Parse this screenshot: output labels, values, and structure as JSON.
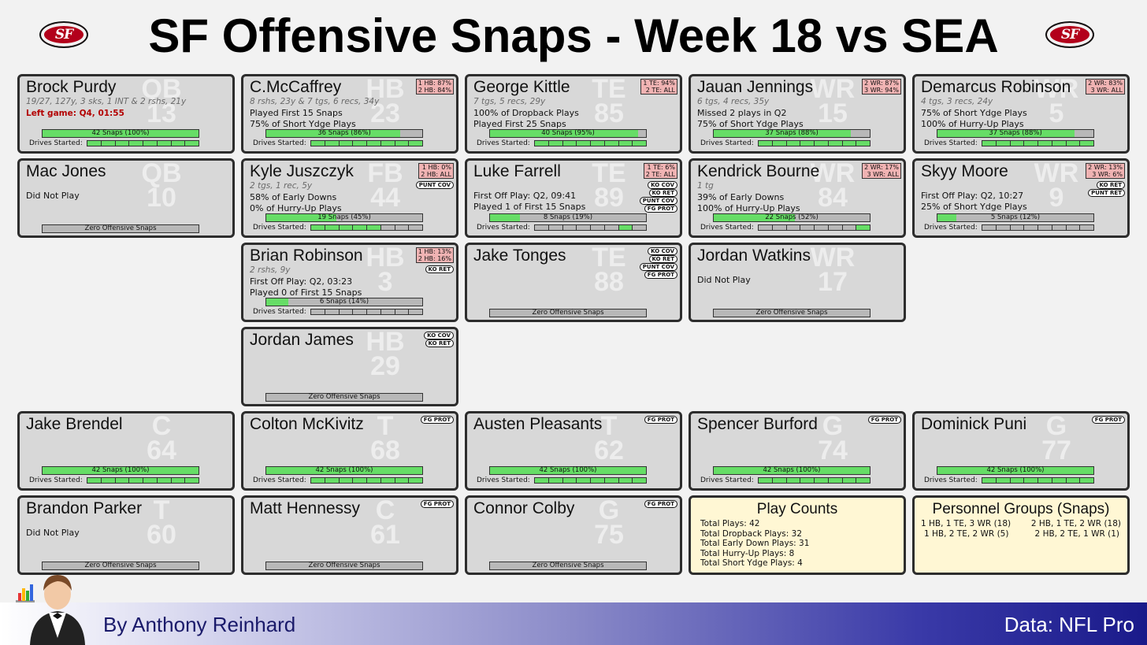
{
  "title": "SF Offensive Snaps - Week 18 vs SEA",
  "logo_text": "SF",
  "footer": {
    "author": "By Anthony Reinhard",
    "source": "Data: NFL Pro"
  },
  "drives_label": "Drives Started:",
  "colors": {
    "bar_fill": "#66dd66",
    "bar_empty": "#b8b8b8",
    "card_bg": "#d8d8d8",
    "summary_bg": "#fff7d4",
    "pct_badge": "#f0b3b3",
    "left_game": "#b30000"
  },
  "players": [
    {
      "name": "Brock Purdy",
      "pos": "QB",
      "num": "13",
      "sub": "19/27, 127y, 3 sks, 1 INT & 2 rshs, 21y",
      "lines": [
        "Left game: Q4, 01:55"
      ],
      "left_game": true,
      "snaps": "42 Snaps (100%)",
      "snap_pct": 100,
      "drives": [
        1,
        1,
        1,
        1,
        1,
        1,
        1,
        1
      ],
      "badges": [],
      "pcts": []
    },
    {
      "name": "C.McCaffrey",
      "pos": "HB",
      "num": "23",
      "sub": "8 rshs, 23y & 7 tgs, 6 recs, 34y",
      "lines": [
        "Played First 15 Snaps",
        "75% of Short Ydge Plays"
      ],
      "snaps": "36 Snaps (86%)",
      "snap_pct": 86,
      "drives": [
        1,
        1,
        1,
        1,
        1,
        1,
        1,
        1
      ],
      "badges": [],
      "pcts": [
        "1 HB: 87%",
        "2 HB: 84%"
      ]
    },
    {
      "name": "George Kittle",
      "pos": "TE",
      "num": "85",
      "sub": "7 tgs, 5 recs, 29y",
      "lines": [
        "100% of Dropback Plays",
        "Played First 25 Snaps"
      ],
      "snaps": "40 Snaps (95%)",
      "snap_pct": 95,
      "drives": [
        1,
        1,
        1,
        1,
        1,
        1,
        1,
        1
      ],
      "badges": [],
      "pcts": [
        "1 TE: 94%",
        "2 TE: ALL"
      ]
    },
    {
      "name": "Jauan Jennings",
      "pos": "WR",
      "num": "15",
      "sub": "6 tgs, 4 recs, 35y",
      "lines": [
        "Missed 2 plays in Q2",
        "75% of Short Ydge Plays"
      ],
      "snaps": "37 Snaps (88%)",
      "snap_pct": 88,
      "drives": [
        1,
        1,
        1,
        1,
        1,
        1,
        1,
        1
      ],
      "badges": [],
      "pcts": [
        "2 WR: 87%",
        "3 WR: 94%"
      ]
    },
    {
      "name": "Demarcus Robinson",
      "pos": "WR",
      "num": "5",
      "sub": "4 tgs, 3 recs, 24y",
      "lines": [
        "75% of Short Ydge Plays",
        "100% of Hurry-Up Plays"
      ],
      "snaps": "37 Snaps (88%)",
      "snap_pct": 88,
      "drives": [
        1,
        1,
        1,
        1,
        1,
        1,
        1,
        1
      ],
      "badges": [],
      "pcts": [
        "2 WR: 83%",
        "3 WR: ALL"
      ]
    },
    {
      "name": "Mac Jones",
      "pos": "QB",
      "num": "10",
      "sub": "",
      "lines": [
        "Did Not Play"
      ],
      "snaps": "Zero Offensive Snaps",
      "snap_pct": 0,
      "drives": null,
      "badges": [],
      "pcts": []
    },
    {
      "name": "Kyle Juszczyk",
      "pos": "FB",
      "num": "44",
      "sub": "2 tgs, 1 rec, 5y",
      "lines": [
        "58% of Early Downs",
        "0% of Hurry-Up Plays"
      ],
      "snaps": "19 Snaps (45%)",
      "snap_pct": 45,
      "drives": [
        1,
        1,
        1,
        1,
        1,
        0,
        0,
        0
      ],
      "badges": [
        "PUNT COV"
      ],
      "pcts": [
        "1 HB:  0%",
        "2 HB: ALL"
      ]
    },
    {
      "name": "Luke Farrell",
      "pos": "TE",
      "num": "89",
      "sub": "",
      "lines": [
        "First Off Play: Q2, 09:41",
        "Played 1 of First 15 Snaps"
      ],
      "snaps": "8 Snaps (19%)",
      "snap_pct": 19,
      "drives": [
        0,
        0,
        0,
        0,
        0,
        0,
        1,
        0
      ],
      "badges": [
        "KO COV",
        "KO RET",
        "PUNT COV",
        "FG PROT"
      ],
      "pcts": [
        "1 TE:  6%",
        "2 TE: ALL"
      ]
    },
    {
      "name": "Kendrick Bourne",
      "pos": "WR",
      "num": "84",
      "sub": "1 tg",
      "lines": [
        "39% of Early Downs",
        "100% of Hurry-Up Plays"
      ],
      "snaps": "22 Snaps (52%)",
      "snap_pct": 52,
      "drives": [
        0,
        0,
        0,
        0,
        0,
        0,
        0,
        1
      ],
      "badges": [],
      "pcts": [
        "2 WR: 17%",
        "3 WR: ALL"
      ]
    },
    {
      "name": "Skyy Moore",
      "pos": "WR",
      "num": "9",
      "sub": "",
      "lines": [
        "First Off Play: Q2, 10:27",
        "25% of Short Ydge Plays"
      ],
      "snaps": "5 Snaps (12%)",
      "snap_pct": 12,
      "drives": [
        0,
        0,
        0,
        0,
        0,
        0,
        0,
        0
      ],
      "badges": [
        "KO RET",
        "PUNT RET"
      ],
      "pcts": [
        "2 WR: 13%",
        "3 WR:  6%"
      ]
    },
    {
      "name": "Brian Robinson",
      "pos": "HB",
      "num": "3",
      "sub": "2 rshs, 9y",
      "lines": [
        "First Off Play: Q2, 03:23",
        "Played 0 of First 15 Snaps"
      ],
      "snaps": "6 Snaps (14%)",
      "snap_pct": 14,
      "drives": [
        0,
        0,
        0,
        0,
        0,
        0,
        0,
        0
      ],
      "badges": [
        "KO RET"
      ],
      "pcts": [
        "1 HB: 13%",
        "2 HB: 16%"
      ]
    },
    {
      "name": "Jake Tonges",
      "pos": "TE",
      "num": "88",
      "sub": "",
      "lines": [],
      "snaps": "Zero Offensive Snaps",
      "snap_pct": 0,
      "drives": null,
      "badges": [
        "KO COV",
        "KO RET",
        "PUNT COV",
        "FG PROT"
      ],
      "pcts": []
    },
    {
      "name": "Jordan Watkins",
      "pos": "WR",
      "num": "17",
      "sub": "",
      "lines": [
        "Did Not Play"
      ],
      "snaps": "Zero Offensive Snaps",
      "snap_pct": 0,
      "drives": null,
      "badges": [],
      "pcts": []
    },
    {
      "name": "Jordan James",
      "pos": "HB",
      "num": "29",
      "sub": "",
      "lines": [],
      "snaps": "Zero Offensive Snaps",
      "snap_pct": 0,
      "drives": null,
      "badges": [
        "KO COV",
        "KO RET"
      ],
      "pcts": []
    },
    {
      "name": "Jake Brendel",
      "pos": "C",
      "num": "64",
      "sub": "",
      "lines": [],
      "snaps": "42 Snaps (100%)",
      "snap_pct": 100,
      "drives": [
        1,
        1,
        1,
        1,
        1,
        1,
        1,
        1
      ],
      "badges": [],
      "pcts": []
    },
    {
      "name": "Colton McKivitz",
      "pos": "T",
      "num": "68",
      "sub": "",
      "lines": [],
      "snaps": "42 Snaps (100%)",
      "snap_pct": 100,
      "drives": [
        1,
        1,
        1,
        1,
        1,
        1,
        1,
        1
      ],
      "badges": [
        "FG PROT"
      ],
      "pcts": []
    },
    {
      "name": "Austen Pleasants",
      "pos": "T",
      "num": "62",
      "sub": "",
      "lines": [],
      "snaps": "42 Snaps (100%)",
      "snap_pct": 100,
      "drives": [
        1,
        1,
        1,
        1,
        1,
        1,
        1,
        1
      ],
      "badges": [
        "FG PROT"
      ],
      "pcts": []
    },
    {
      "name": "Spencer Burford",
      "pos": "G",
      "num": "74",
      "sub": "",
      "lines": [],
      "snaps": "42 Snaps (100%)",
      "snap_pct": 100,
      "drives": [
        1,
        1,
        1,
        1,
        1,
        1,
        1,
        1
      ],
      "badges": [
        "FG PROT"
      ],
      "pcts": []
    },
    {
      "name": "Dominick Puni",
      "pos": "G",
      "num": "77",
      "sub": "",
      "lines": [],
      "snaps": "42 Snaps (100%)",
      "snap_pct": 100,
      "drives": [
        1,
        1,
        1,
        1,
        1,
        1,
        1,
        1
      ],
      "badges": [
        "FG PROT"
      ],
      "pcts": []
    },
    {
      "name": "Brandon Parker",
      "pos": "T",
      "num": "60",
      "sub": "",
      "lines": [
        "Did Not Play"
      ],
      "snaps": "Zero Offensive Snaps",
      "snap_pct": 0,
      "drives": null,
      "badges": [],
      "pcts": []
    },
    {
      "name": "Matt Hennessy",
      "pos": "C",
      "num": "61",
      "sub": "",
      "lines": [],
      "snaps": "Zero Offensive Snaps",
      "snap_pct": 0,
      "drives": null,
      "badges": [
        "FG PROT"
      ],
      "pcts": []
    },
    {
      "name": "Connor Colby",
      "pos": "G",
      "num": "75",
      "sub": "",
      "lines": [],
      "snaps": "Zero Offensive Snaps",
      "snap_pct": 0,
      "drives": null,
      "badges": [
        "FG PROT"
      ],
      "pcts": []
    }
  ],
  "play_counts": {
    "title": "Play Counts",
    "items": [
      "Total Plays: 42",
      "Total Dropback Plays: 32",
      "Total Early Down Plays: 31",
      "Total Hurry-Up Plays: 8",
      "Total Short Ydge Plays: 4"
    ]
  },
  "personnel": {
    "title": "Personnel Groups (Snaps)",
    "items": [
      "1 HB, 1 TE, 3 WR (18)",
      "2 HB, 1 TE, 2 WR (18)",
      "1 HB, 2 TE, 2 WR (5)",
      "2 HB, 2 TE, 1 WR (1)"
    ]
  }
}
